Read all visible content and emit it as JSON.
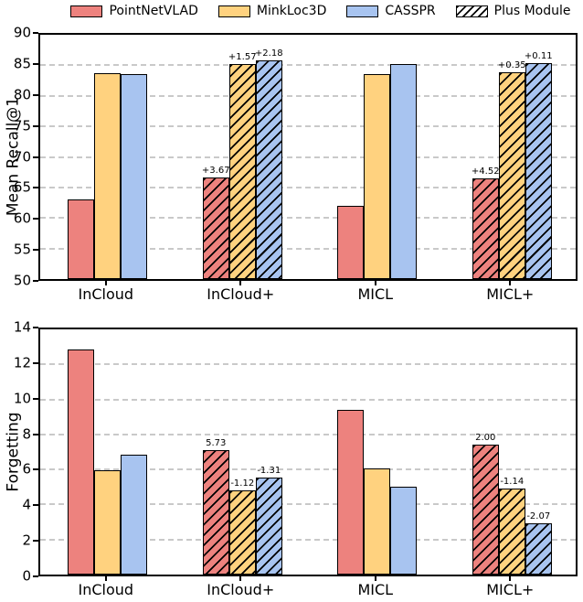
{
  "legend": {
    "items": [
      {
        "label": "PointNetVLAD",
        "color": "#ED827E",
        "hatched": false
      },
      {
        "label": "MinkLoc3D",
        "color": "#FFD27F",
        "hatched": false
      },
      {
        "label": "CASSPR",
        "color": "#A8C4F0",
        "hatched": false
      },
      {
        "label": "Plus Module",
        "color": "#FFFFFF",
        "hatched": true
      }
    ]
  },
  "styles": {
    "grid_color": "#c9c9c9",
    "bar_edge_color": "#000000",
    "hatch_color": "#000000",
    "annotation_color": "#000000"
  },
  "chart_data": [
    {
      "type": "bar",
      "title": "",
      "xlabel": "",
      "ylabel": "Mean Recall@1",
      "ylim": [
        50,
        90
      ],
      "yticks": [
        50,
        55,
        60,
        65,
        70,
        75,
        80,
        85,
        90
      ],
      "grid": "horizontal-dashed",
      "legend_position": "top",
      "categories": [
        "InCloud",
        "InCloud+",
        "MICL",
        "MICL+"
      ],
      "hatched": [
        false,
        true,
        false,
        true
      ],
      "series": [
        {
          "name": "PointNetVLAD",
          "color": "#ED827E",
          "values": [
            63.0,
            66.67,
            62.0,
            66.52
          ],
          "annotations": [
            "",
            "+3.67",
            "",
            "+4.52"
          ]
        },
        {
          "name": "MinkLoc3D",
          "color": "#FFD27F",
          "values": [
            83.65,
            85.22,
            83.5,
            83.85
          ],
          "annotations": [
            "",
            "+1.57",
            "",
            "+0.35"
          ]
        },
        {
          "name": "CASSPR",
          "color": "#A8C4F0",
          "values": [
            83.6,
            85.78,
            85.2,
            85.31
          ],
          "annotations": [
            "",
            "+2.18",
            "",
            "+0.11"
          ]
        }
      ]
    },
    {
      "type": "bar",
      "title": "",
      "xlabel": "",
      "ylabel": "Forgetting",
      "ylim": [
        0,
        14
      ],
      "yticks": [
        0,
        2,
        4,
        6,
        8,
        10,
        12,
        14
      ],
      "grid": "horizontal-dashed",
      "legend_position": "none",
      "categories": [
        "InCloud",
        "InCloud+",
        "MICL",
        "MICL+"
      ],
      "hatched": [
        false,
        true,
        false,
        true
      ],
      "series": [
        {
          "name": "PointNetVLAD",
          "color": "#ED827E",
          "values": [
            12.85,
            7.12,
            9.4,
            7.4
          ],
          "annotations": [
            "",
            "5.73",
            "",
            "2.00"
          ]
        },
        {
          "name": "MinkLoc3D",
          "color": "#FFD27F",
          "values": [
            5.95,
            4.83,
            6.05,
            4.91
          ],
          "annotations": [
            "",
            "-1.12",
            "",
            "-1.14"
          ]
        },
        {
          "name": "CASSPR",
          "color": "#A8C4F0",
          "values": [
            6.85,
            5.54,
            5.0,
            2.93
          ],
          "annotations": [
            "",
            "-1.31",
            "",
            "-2.07"
          ]
        }
      ]
    }
  ]
}
